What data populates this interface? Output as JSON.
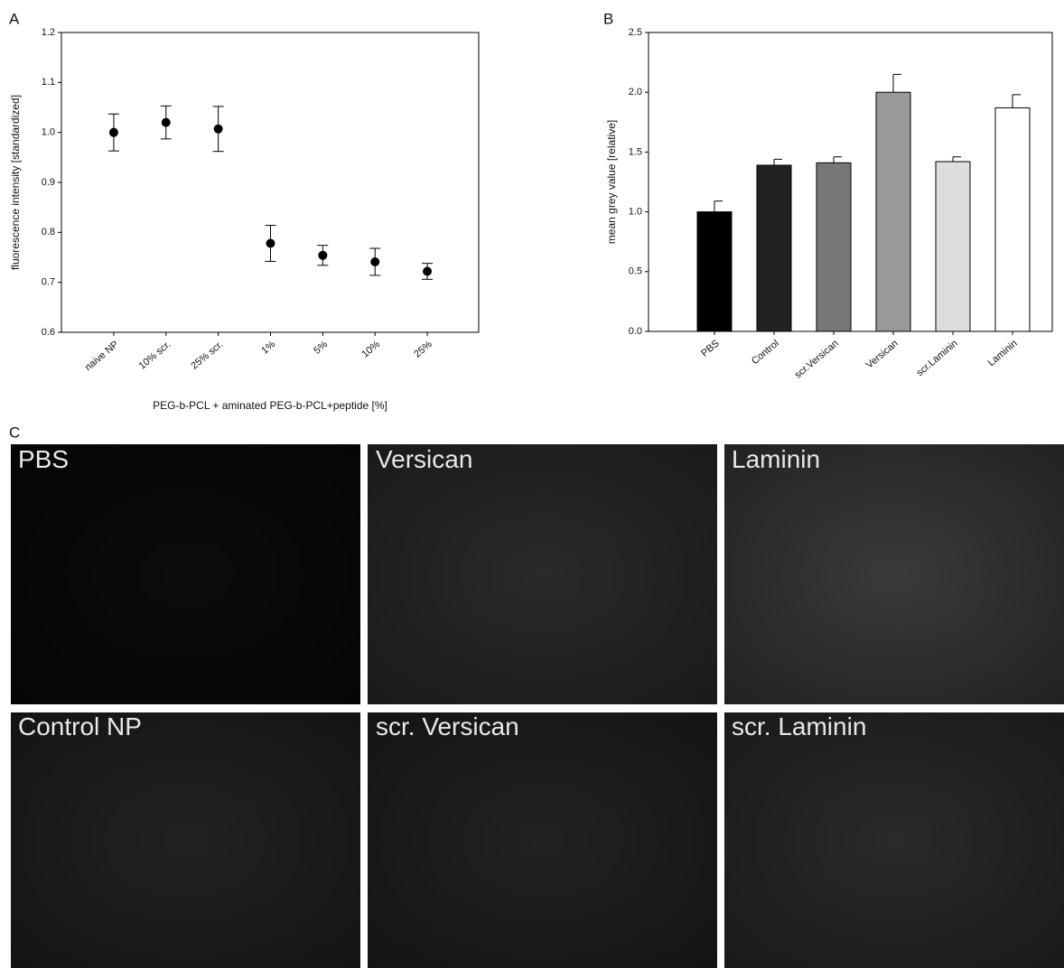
{
  "panel_letters": [
    "A",
    "B",
    "C"
  ],
  "chart_data": [
    {
      "type": "scatter",
      "x_label": "PEG-b-PCL + aminated PEG-b-PCL+peptide [%]",
      "y_label": "fluorescence intensity [standardized]",
      "categories": [
        "naive NP",
        "10% scr.",
        "25% scr.",
        "1%",
        "5%",
        "10%",
        "25%"
      ],
      "values": [
        1.0,
        1.02,
        1.007,
        0.778,
        0.754,
        0.741,
        0.722
      ],
      "errors": [
        0.037,
        0.033,
        0.045,
        0.036,
        0.02,
        0.027,
        0.016
      ],
      "color": "#000000",
      "ylim": [
        0.6,
        1.2
      ],
      "yticks": [
        0.6,
        0.7,
        0.8,
        0.9,
        {
          "value": 1.0,
          "label": "1.0"
        },
        1.1,
        1.2
      ]
    },
    {
      "type": "bar",
      "y_label": "mean grey value [relative]",
      "categories": [
        "PBS",
        "Control",
        "scr.Versican",
        "Versican",
        "scr.Laminin",
        "Laminin"
      ],
      "values": [
        1.0,
        1.39,
        1.41,
        2.0,
        1.42,
        1.87
      ],
      "errors": [
        0.09,
        0.05,
        0.05,
        0.15,
        0.04,
        0.11
      ],
      "colors": [
        "#000000",
        "#222222",
        "#777777",
        "#999999",
        "#dddddd",
        "#ffffff"
      ],
      "ylim": [
        0,
        2.5
      ],
      "yticks": [
        {
          "value": 0,
          "label": "0.0"
        },
        0.5,
        {
          "value": 1.0,
          "label": "1.0"
        },
        1.5,
        {
          "value": 2.0,
          "label": "2.0"
        },
        2.5
      ]
    }
  ],
  "images": {
    "labels": [
      "PBS",
      "Versican",
      "Laminin",
      "Control NP",
      "scr. Versican",
      "scr. Laminin"
    ]
  }
}
